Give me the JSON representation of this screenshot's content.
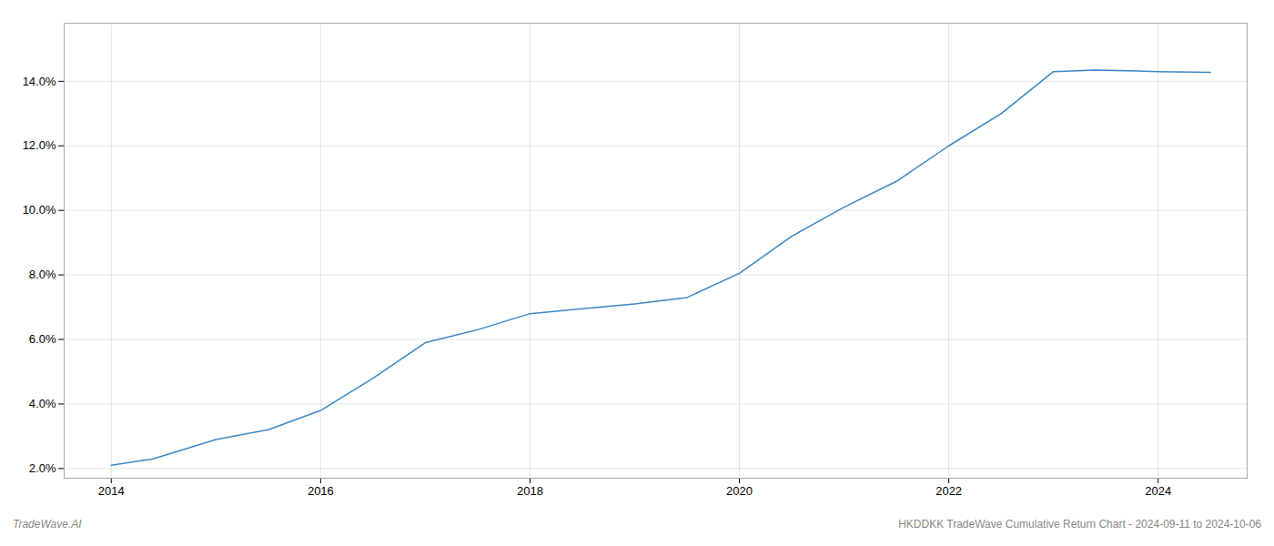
{
  "chart_data": {
    "type": "line",
    "x": [
      2014.0,
      2014.4,
      2015.0,
      2015.5,
      2016.0,
      2016.5,
      2017.0,
      2017.5,
      2018.0,
      2018.5,
      2019.0,
      2019.5,
      2020.0,
      2020.5,
      2021.0,
      2021.5,
      2022.0,
      2022.5,
      2023.0,
      2023.4,
      2023.8,
      2024.0,
      2024.5
    ],
    "values": [
      2.1,
      2.3,
      2.9,
      3.2,
      3.8,
      4.8,
      5.9,
      6.3,
      6.8,
      6.95,
      7.1,
      7.3,
      8.05,
      9.2,
      10.1,
      10.9,
      12.0,
      13.0,
      14.3,
      14.35,
      14.32,
      14.3,
      14.28
    ],
    "color": "#3a87c8",
    "xlim": [
      2013.55,
      2024.85
    ],
    "ylim": [
      1.7,
      15.8
    ],
    "xticks": [
      2014,
      2016,
      2018,
      2020,
      2022,
      2024
    ],
    "yticks": [
      {
        "value": 2.0,
        "label": "2.0%"
      },
      {
        "value": 4.0,
        "label": "4.0%"
      },
      {
        "value": 6.0,
        "label": "6.0%"
      },
      {
        "value": 8.0,
        "label": "8.0%"
      },
      {
        "value": 10.0,
        "label": "10.0%"
      },
      {
        "value": 12.0,
        "label": "12.0%"
      },
      {
        "value": 14.0,
        "label": "14.0%"
      }
    ],
    "grid": true,
    "annotations": [
      "TradeWave.AI",
      "HKDDKK TradeWave Cumulative Return Chart - 2024-09-11 to 2024-10-06"
    ]
  }
}
